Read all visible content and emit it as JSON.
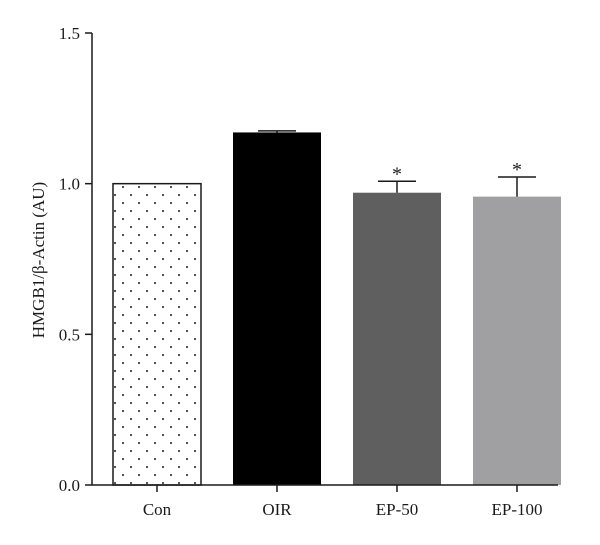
{
  "chart_data": {
    "type": "bar",
    "categories": [
      "Con",
      "OIR",
      "EP-50",
      "EP-100"
    ],
    "values": [
      1.0,
      1.17,
      0.97,
      0.957
    ],
    "errors": [
      0.0,
      0.005,
      0.038,
      0.065
    ],
    "significance": [
      "",
      "",
      "*",
      "*"
    ],
    "ylabel": "HMGB1/β-Actin (AU)",
    "ylim": [
      0,
      1.5
    ],
    "yticks": [
      "0.0",
      "0.5",
      "1.0",
      "1.5"
    ],
    "ytick_values": [
      0,
      0.5,
      1.0,
      1.5
    ],
    "grid": false,
    "colors": {
      "con": "#ffffff",
      "oir": "#000000",
      "ep50": "#5f5f5f",
      "ep100": "#a0a0a2",
      "dots": "#444444",
      "axis": "#1a1a1a"
    }
  }
}
